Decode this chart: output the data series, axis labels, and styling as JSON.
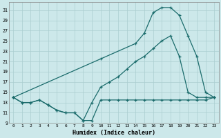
{
  "xlabel": "Humidex (Indice chaleur)",
  "bg_color": "#cce8ea",
  "line_color": "#1a6b6b",
  "grid_color": "#aacdd0",
  "xlim": [
    -0.5,
    23.5
  ],
  "ylim": [
    9,
    32.5
  ],
  "yticks": [
    9,
    11,
    13,
    15,
    17,
    19,
    21,
    23,
    25,
    27,
    29,
    31
  ],
  "xticks": [
    0,
    1,
    2,
    3,
    4,
    5,
    6,
    7,
    8,
    9,
    10,
    11,
    12,
    13,
    14,
    15,
    16,
    17,
    18,
    19,
    20,
    21,
    22,
    23
  ],
  "line1_x": [
    0,
    1,
    2,
    3,
    4,
    5,
    6,
    7,
    8,
    9,
    10,
    11,
    12,
    13,
    14,
    15,
    16,
    17,
    18,
    19,
    20,
    21,
    22,
    23
  ],
  "line1_y": [
    14,
    13,
    13,
    13.5,
    12.5,
    11.5,
    11,
    11,
    9.5,
    9.5,
    13.5,
    13.5,
    13.5,
    13.5,
    13.5,
    13.5,
    13.5,
    13.5,
    13.5,
    13.5,
    13.5,
    13.5,
    13.5,
    14
  ],
  "line2_x": [
    0,
    1,
    2,
    3,
    4,
    5,
    6,
    7,
    8,
    9,
    10,
    11,
    12,
    13,
    14,
    15,
    16,
    17,
    18,
    19,
    20,
    21,
    22,
    23
  ],
  "line2_y": [
    14,
    13,
    13,
    13.5,
    12.5,
    11.5,
    11,
    11,
    9.5,
    13,
    16,
    17,
    18,
    19.5,
    21,
    22,
    23.5,
    25,
    26,
    22,
    15,
    14,
    14,
    14
  ],
  "line3_x": [
    0,
    10,
    14,
    15,
    16,
    17,
    18,
    19,
    20,
    21,
    22,
    23
  ],
  "line3_y": [
    14,
    21.5,
    24.5,
    26.5,
    30.5,
    31.5,
    31.5,
    30,
    26,
    22,
    15,
    14
  ]
}
